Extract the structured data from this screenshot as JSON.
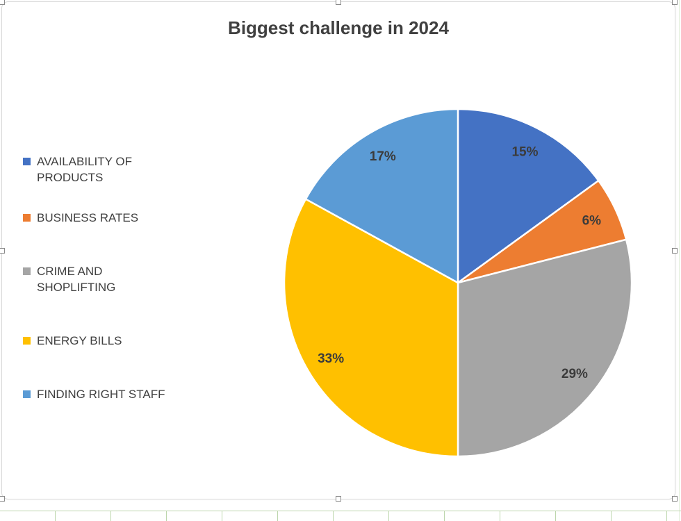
{
  "chart_data": {
    "type": "pie",
    "title": "Biggest challenge in 2024",
    "categories": [
      "AVAILABILITY OF PRODUCTS",
      "BUSINESS RATES",
      "CRIME AND SHOPLIFTING",
      "ENERGY BILLS",
      "FINDING RIGHT STAFF"
    ],
    "values": [
      15,
      6,
      29,
      33,
      17
    ],
    "data_labels": [
      "15%",
      "6%",
      "29%",
      "33%",
      "17%"
    ],
    "colors": [
      "#4472C4",
      "#ED7D31",
      "#A5A5A5",
      "#FFC000",
      "#5B9BD5"
    ],
    "legend_position": "left",
    "start_angle_deg": 0,
    "direction": "clockwise",
    "slice_border_color": "#FFFFFF",
    "label_color": "#3B3B3B",
    "title_color": "#404040"
  }
}
